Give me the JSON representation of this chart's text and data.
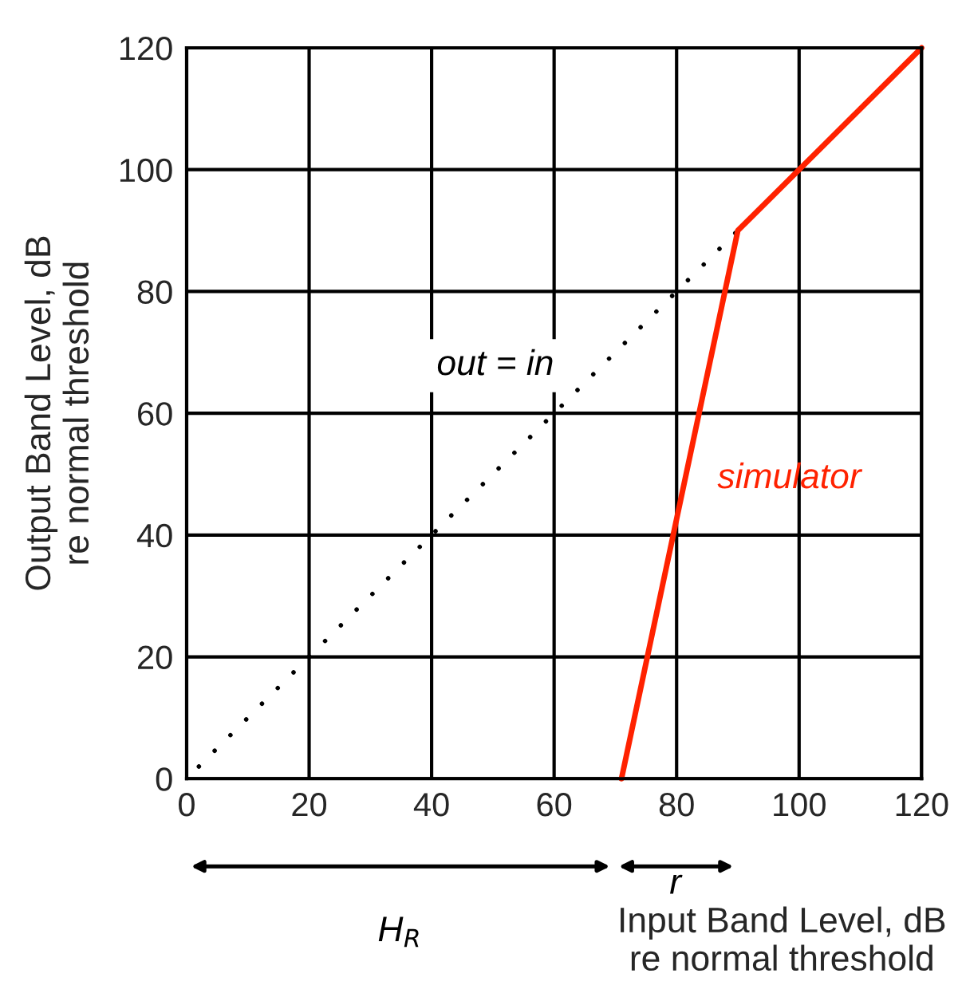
{
  "chart_data": {
    "type": "line",
    "xlabel": "Input Band Level, dB\nre normal threshold",
    "ylabel": "Output Band Level, dB\nre normal threshold",
    "series": [
      {
        "color": "#000000",
        "line_style": "dotted",
        "x": [
          2,
          90
        ],
        "values": [
          2,
          90
        ]
      },
      {
        "color": "#ff2200",
        "line_style": "solid",
        "x": [
          71,
          90,
          120
        ],
        "values": [
          0,
          90,
          120
        ]
      }
    ],
    "annotations": [
      "out = in",
      "simulator",
      "H$_{R}$",
      "r"
    ],
    "xlim": [
      0,
      120
    ],
    "ylim": [
      0,
      120
    ],
    "xticks": [
      0,
      20,
      40,
      60,
      80,
      100,
      120
    ],
    "yticks": [
      0,
      20,
      40,
      60,
      80,
      100,
      120
    ],
    "grid": true,
    "marker": "none"
  }
}
